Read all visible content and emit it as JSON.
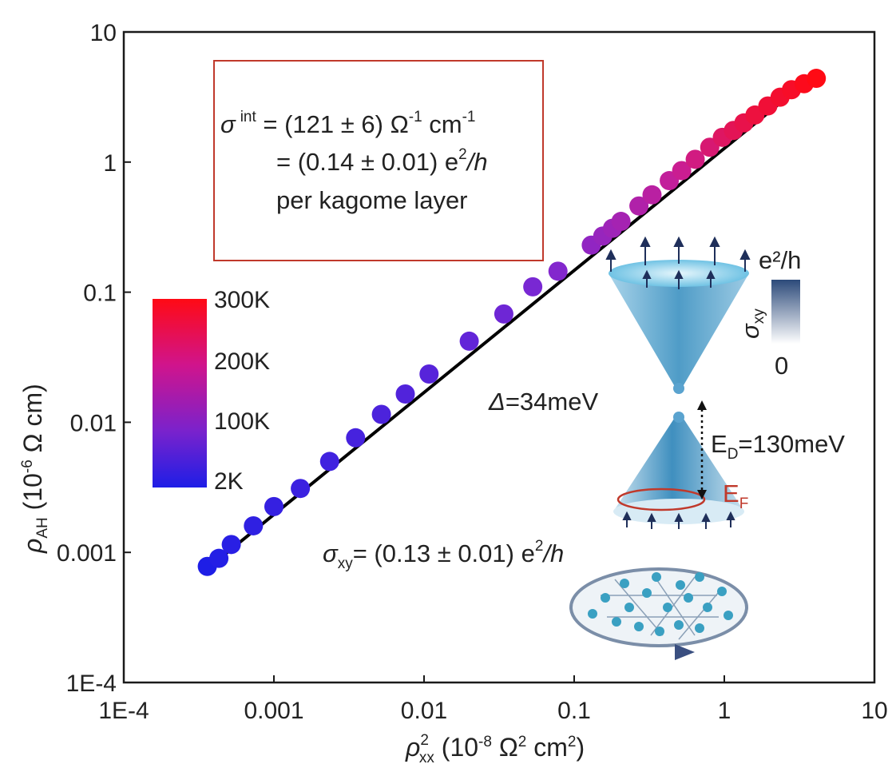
{
  "chart_data": {
    "type": "scatter",
    "scale": {
      "x": "log",
      "y": "log"
    },
    "xlim": [
      0.0001,
      10
    ],
    "ylim": [
      0.0001,
      10
    ],
    "x_ticks": [
      "1E-4",
      "0.001",
      "0.01",
      "0.1",
      "1",
      "10"
    ],
    "y_ticks": [
      "1E-4",
      "0.001",
      "0.01",
      "0.1",
      "1",
      "10"
    ],
    "xlabel": {
      "symbol": "ρ",
      "sup": "2",
      "sub": "xx",
      "unit_open": " (10",
      "unit_exp": "-8",
      "unit_mid": " Ω",
      "unit_exp2": "2",
      "unit_end": " cm",
      "unit_exp3": "2",
      "unit_close": ")"
    },
    "ylabel": {
      "symbol": "ρ",
      "sub": "AH",
      "unit_open": " (10",
      "unit_exp": "-6",
      "unit_close": " Ω cm)"
    },
    "fit_line": {
      "x": [
        0.00036,
        4.3
      ],
      "y": [
        0.00075,
        5.0
      ]
    },
    "series": [
      {
        "points": [
          {
            "x": 0.00036,
            "y": 0.00078,
            "t": 0.0
          },
          {
            "x": 0.00043,
            "y": 0.0009,
            "t": 0.02
          },
          {
            "x": 0.00052,
            "y": 0.00115,
            "t": 0.04
          },
          {
            "x": 0.00073,
            "y": 0.0016,
            "t": 0.06
          },
          {
            "x": 0.001,
            "y": 0.00225,
            "t": 0.08
          },
          {
            "x": 0.0015,
            "y": 0.0031,
            "t": 0.1
          },
          {
            "x": 0.00235,
            "y": 0.005,
            "t": 0.12
          },
          {
            "x": 0.0035,
            "y": 0.0076,
            "t": 0.14
          },
          {
            "x": 0.0052,
            "y": 0.0115,
            "t": 0.16
          },
          {
            "x": 0.0075,
            "y": 0.0165,
            "t": 0.18
          },
          {
            "x": 0.0108,
            "y": 0.0235,
            "t": 0.2
          },
          {
            "x": 0.02,
            "y": 0.042,
            "t": 0.24
          },
          {
            "x": 0.034,
            "y": 0.068,
            "t": 0.28
          },
          {
            "x": 0.053,
            "y": 0.11,
            "t": 0.32
          },
          {
            "x": 0.078,
            "y": 0.145,
            "t": 0.36
          },
          {
            "x": 0.13,
            "y": 0.23,
            "t": 0.42
          },
          {
            "x": 0.155,
            "y": 0.27,
            "t": 0.45
          },
          {
            "x": 0.18,
            "y": 0.31,
            "t": 0.48
          },
          {
            "x": 0.205,
            "y": 0.35,
            "t": 0.51
          },
          {
            "x": 0.27,
            "y": 0.46,
            "t": 0.56
          },
          {
            "x": 0.33,
            "y": 0.56,
            "t": 0.6
          },
          {
            "x": 0.43,
            "y": 0.72,
            "t": 0.64
          },
          {
            "x": 0.52,
            "y": 0.86,
            "t": 0.68
          },
          {
            "x": 0.64,
            "y": 1.05,
            "t": 0.72
          },
          {
            "x": 0.8,
            "y": 1.3,
            "t": 0.76
          },
          {
            "x": 0.97,
            "y": 1.55,
            "t": 0.8
          },
          {
            "x": 1.15,
            "y": 1.75,
            "t": 0.83
          },
          {
            "x": 1.35,
            "y": 2.0,
            "t": 0.86
          },
          {
            "x": 1.6,
            "y": 2.3,
            "t": 0.89
          },
          {
            "x": 1.95,
            "y": 2.7,
            "t": 0.91
          },
          {
            "x": 2.35,
            "y": 3.15,
            "t": 0.93
          },
          {
            "x": 2.8,
            "y": 3.6,
            "t": 0.95
          },
          {
            "x": 3.4,
            "y": 4.0,
            "t": 0.98
          },
          {
            "x": 4.1,
            "y": 4.4,
            "t": 1.0
          }
        ]
      }
    ],
    "colorbar": {
      "labels": [
        "300K",
        "200K",
        "100K",
        "2K"
      ],
      "colors": [
        "#ff0a14",
        "#c81e96",
        "#7d28d2",
        "#1e1ee6"
      ]
    },
    "inset_colorbar": {
      "top": "e²/h",
      "bottom": "0",
      "symbol": "σ",
      "sub": "xy"
    },
    "box": {
      "line1_symbol": "σ",
      "line1_sup": "int",
      "line1_rest": " = (121 ± 6) Ω",
      "line1_exp1": "-1",
      "line1_mid": " cm",
      "line1_exp2": "-1",
      "line2": "= (0.14 ± 0.01) e",
      "line2_exp": "2",
      "line2_end": "/h",
      "line3": "per kagome layer"
    },
    "labels": {
      "delta": "Δ",
      "delta_rest": "=34meV",
      "ed_main": "E",
      "ed_sub": "D",
      "ed_rest": "=130meV",
      "ef_main": "E",
      "ef_sub": "F",
      "sigma_symbol": "σ",
      "sigma_sub": "xy",
      "sigma_rest": "= (0.13 ± 0.01) e",
      "sigma_exp": "2",
      "sigma_end": "/h"
    },
    "colors": {
      "box": "#c0392b",
      "fit": "#000000",
      "ef": "#c0392b"
    }
  }
}
